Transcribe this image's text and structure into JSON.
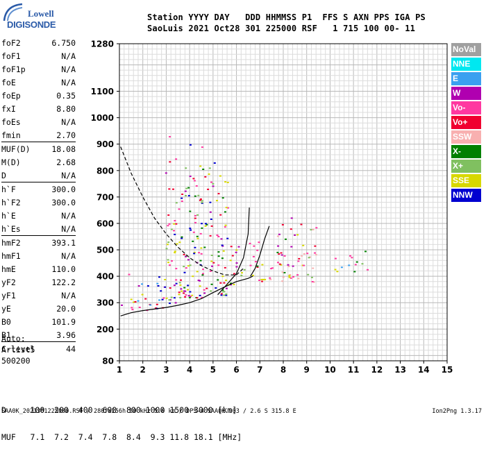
{
  "logo": {
    "line1": "Lowell",
    "line2": "DIGISONDE"
  },
  "header": {
    "labels": "Station YYYY DAY   DDD HHMMSS P1  FFS S AXN PPS IGA PS",
    "values": "SaoLuis 2021 Oct28 301 225000 RSF   1 715 100 00- 11"
  },
  "params": [
    [
      {
        "l": "foF2",
        "v": "6.750"
      },
      {
        "l": "foF1",
        "v": "N/A"
      },
      {
        "l": "foF1p",
        "v": "N/A"
      },
      {
        "l": "foE",
        "v": "N/A"
      },
      {
        "l": "foEp",
        "v": "0.35"
      },
      {
        "l": "fxI",
        "v": "8.80"
      },
      {
        "l": "foEs",
        "v": "N/A"
      },
      {
        "l": "fmin",
        "v": "2.70"
      }
    ],
    [
      {
        "l": "MUF(D)",
        "v": "18.08"
      },
      {
        "l": "M(D)",
        "v": "2.68"
      },
      {
        "l": "D",
        "v": "N/A"
      }
    ],
    [
      {
        "l": "h`F",
        "v": "300.0"
      },
      {
        "l": "h`F2",
        "v": "300.0"
      },
      {
        "l": "h`E",
        "v": "N/A"
      },
      {
        "l": "h`Es",
        "v": "N/A"
      }
    ],
    [
      {
        "l": "hmF2",
        "v": "393.1"
      },
      {
        "l": "hmF1",
        "v": "N/A"
      },
      {
        "l": "hmE",
        "v": "110.0"
      },
      {
        "l": "yF2",
        "v": "122.2"
      },
      {
        "l": "yF1",
        "v": "N/A"
      },
      {
        "l": "yE",
        "v": "20.0"
      },
      {
        "l": "B0",
        "v": "101.9"
      },
      {
        "l": "B1",
        "v": "3.96"
      }
    ],
    [
      {
        "l": "C-level",
        "v": "44"
      }
    ]
  ],
  "auto": {
    "line1": "Auto:",
    "line2": "Artist5",
    "line3": "500200"
  },
  "dmuf": {
    "line1": "D     100  200  400  600  800 1000 1500 3000 [km]",
    "line2": "MUF   7.1  7.2  7.4  7.8  8.4  9.3 11.8 18.1 [MHz]"
  },
  "footer": {
    "left": "SAA0K_2021301225000.RSF / 280fx256h 50 kHz 5.0 km / DPS-4 SAA0K 903 / 2.6 S 315.8 E",
    "right": "Ion2Png 1.3.17"
  },
  "legend": [
    {
      "label": "NoVal",
      "color": "#a0a0a0"
    },
    {
      "label": "NNE",
      "color": "#00e8f0"
    },
    {
      "label": "E",
      "color": "#3aa0f0"
    },
    {
      "label": "W",
      "color": "#b000b0"
    },
    {
      "label": "Vo-",
      "color": "#ff38a0"
    },
    {
      "label": "Vo+",
      "color": "#f00030"
    },
    {
      "label": "SSW",
      "color": "#f8b0b0"
    },
    {
      "label": "X-",
      "color": "#008000"
    },
    {
      "label": "X+",
      "color": "#80c060"
    },
    {
      "label": "SSE",
      "color": "#d8d800"
    },
    {
      "label": "NNW",
      "color": "#0000d0"
    }
  ],
  "chart_data": {
    "type": "scatter",
    "x_ticks": [
      "1",
      "2",
      "3",
      "4",
      "5",
      "6",
      "7",
      "8",
      "9",
      "10",
      "11",
      "12",
      "13",
      "14",
      "15"
    ],
    "y_ticks": [
      "80",
      "200",
      "300",
      "400",
      "500",
      "600",
      "700",
      "800",
      "900",
      "1000",
      "1100",
      "1280"
    ],
    "xlim": [
      1,
      15
    ],
    "ylim": [
      80,
      1280
    ],
    "grid": true,
    "clusters": [
      {
        "x": [
          1.05,
          2.9
        ],
        "y": [
          270,
          440
        ],
        "weight": 0.55,
        "colors": [
          "#0000d0",
          "#b000b0",
          "#3aa0f0",
          "#f00030",
          "#ff38a0",
          "#d8d800"
        ]
      },
      {
        "x": [
          2.9,
          3.5
        ],
        "y": [
          300,
          850
        ],
        "weight": 0.7,
        "colors": [
          "#b000b0",
          "#f00030",
          "#ff38a0",
          "#0000d0",
          "#d8d800",
          "#80c060"
        ]
      },
      {
        "x": [
          3.5,
          4.5
        ],
        "y": [
          320,
          850
        ],
        "weight": 1.0,
        "colors": [
          "#b000b0",
          "#f00030",
          "#ff38a0",
          "#0000d0",
          "#008000",
          "#80c060",
          "#d8d800"
        ]
      },
      {
        "x": [
          4.5,
          5.6
        ],
        "y": [
          330,
          840
        ],
        "weight": 0.75,
        "colors": [
          "#b000b0",
          "#f00030",
          "#ff38a0",
          "#008000",
          "#80c060",
          "#d8d800",
          "#0000d0"
        ]
      },
      {
        "x": [
          5.6,
          6.1
        ],
        "y": [
          370,
          560
        ],
        "weight": 0.8,
        "colors": [
          "#f00030",
          "#ff38a0",
          "#d8d800",
          "#008000",
          "#b000b0"
        ]
      },
      {
        "x": [
          6.1,
          6.5
        ],
        "y": [
          400,
          450
        ],
        "weight": 0.9,
        "colors": [
          "#d8d800",
          "#80c060",
          "#f8b0b0"
        ]
      },
      {
        "x": [
          6.5,
          7.1
        ],
        "y": [
          380,
          560
        ],
        "weight": 0.8,
        "colors": [
          "#ff38a0",
          "#f00030",
          "#d8d800",
          "#b000b0",
          "#008000"
        ]
      },
      {
        "x": [
          7.1,
          7.7
        ],
        "y": [
          390,
          460
        ],
        "weight": 0.85,
        "colors": [
          "#d8d800",
          "#f8b0b0",
          "#ff38a0"
        ]
      },
      {
        "x": [
          7.7,
          8.5
        ],
        "y": [
          380,
          640
        ],
        "weight": 0.85,
        "colors": [
          "#f8b0b0",
          "#ff38a0",
          "#f00030",
          "#d8d800",
          "#008000",
          "#b000b0"
        ]
      },
      {
        "x": [
          8.5,
          9.4
        ],
        "y": [
          380,
          600
        ],
        "weight": 0.75,
        "colors": [
          "#f8b0b0",
          "#d8d800",
          "#ff38a0",
          "#f00030",
          "#80c060"
        ]
      },
      {
        "x": [
          10.1,
          11.6
        ],
        "y": [
          420,
          520
        ],
        "weight": 0.5,
        "colors": [
          "#80c060",
          "#d8d800",
          "#008000",
          "#ff38a0",
          "#3aa0f0"
        ]
      },
      {
        "x": [
          2.9,
          5.6
        ],
        "y": [
          860,
          940
        ],
        "weight": 0.08,
        "colors": [
          "#b000b0",
          "#ff38a0",
          "#0000d0"
        ]
      }
    ],
    "curves": [
      {
        "name": "dashed",
        "points": [
          [
            1.05,
            890
          ],
          [
            1.5,
            790
          ],
          [
            2,
            700
          ],
          [
            2.5,
            620
          ],
          [
            3,
            560
          ],
          [
            3.5,
            510
          ],
          [
            4,
            470
          ],
          [
            4.5,
            440
          ],
          [
            5,
            420
          ],
          [
            5.5,
            405
          ],
          [
            6,
            405
          ],
          [
            6.3,
            430
          ]
        ]
      },
      {
        "name": "solid",
        "points": [
          [
            1.05,
            250
          ],
          [
            1.5,
            262
          ],
          [
            2,
            270
          ],
          [
            2.5,
            276
          ],
          [
            3,
            282
          ],
          [
            3.5,
            290
          ],
          [
            4,
            300
          ],
          [
            4.5,
            315
          ],
          [
            5,
            338
          ],
          [
            5.5,
            360
          ],
          [
            6,
            380
          ],
          [
            6.5,
            392
          ],
          [
            6.7,
            400
          ]
        ]
      },
      {
        "name": "solid-left",
        "points": [
          [
            5.2,
            330
          ],
          [
            5.6,
            370
          ],
          [
            6,
            410
          ],
          [
            6.3,
            470
          ],
          [
            6.5,
            560
          ],
          [
            6.55,
            660
          ]
        ]
      },
      {
        "name": "solid-right",
        "points": [
          [
            6.6,
            400
          ],
          [
            6.8,
            430
          ],
          [
            7.0,
            480
          ],
          [
            7.2,
            540
          ],
          [
            7.4,
            590
          ]
        ]
      }
    ]
  }
}
